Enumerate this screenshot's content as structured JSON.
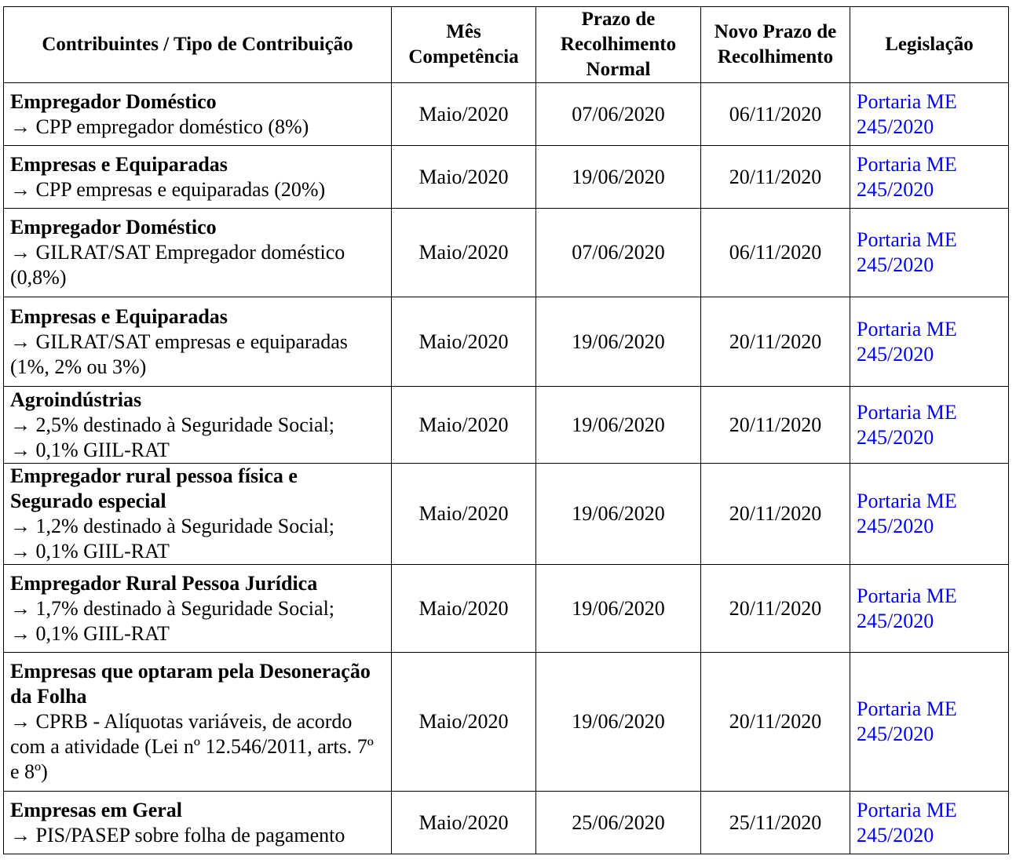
{
  "headers": [
    "Contribuintes / Tipo de Contribuição",
    "Mês Competência",
    "Prazo de Recolhimento Normal",
    "Novo Prazo de Recolhimento",
    "Legislação"
  ],
  "link_color": "#0000ff",
  "rows": [
    {
      "title": "Empregador Doméstico",
      "details": [
        "→ CPP empregador doméstico (8%)"
      ],
      "month": "Maio/2020",
      "normal": "07/06/2020",
      "new": "06/11/2020",
      "law": "Portaria ME 245/2020"
    },
    {
      "title": "Empresas e Equiparadas",
      "details": [
        "→ CPP empresas e equiparadas (20%)"
      ],
      "month": "Maio/2020",
      "normal": "19/06/2020",
      "new": "20/11/2020",
      "law": "Portaria ME 245/2020"
    },
    {
      "title": "Empregador Doméstico",
      "details": [
        "→ GILRAT/SAT Empregador doméstico (0,8%)"
      ],
      "month": "Maio/2020",
      "normal": "07/06/2020",
      "new": "06/11/2020",
      "law": "Portaria ME 245/2020"
    },
    {
      "title": "Empresas e Equiparadas",
      "details": [
        "→ GILRAT/SAT empresas e equiparadas (1%, 2% ou 3%)"
      ],
      "month": "Maio/2020",
      "normal": "19/06/2020",
      "new": "20/11/2020",
      "law": "Portaria ME 245/2020"
    },
    {
      "title": "Agroindústrias",
      "details": [
        "→ 2,5% destinado à Seguridade Social;",
        "→ 0,1% GIIL-RAT"
      ],
      "month": "Maio/2020",
      "normal": "19/06/2020",
      "new": "20/11/2020",
      "law": "Portaria ME 245/2020"
    },
    {
      "title": "Empregador rural pessoa física e Segurado especial",
      "details": [
        "→ 1,2% destinado à Seguridade Social;",
        "→ 0,1% GIIL-RAT"
      ],
      "month": "Maio/2020",
      "normal": "19/06/2020",
      "new": "20/11/2020",
      "law": "Portaria ME 245/2020"
    },
    {
      "title": "Empregador Rural Pessoa Jurídica",
      "details": [
        "→ 1,7% destinado à Seguridade Social;",
        "→ 0,1% GIIL-RAT"
      ],
      "month": "Maio/2020",
      "normal": "19/06/2020",
      "new": "20/11/2020",
      "law": "Portaria ME 245/2020"
    },
    {
      "title": "Empresas que optaram pela Desoneração da Folha",
      "details": [
        "→ CPRB - Alíquotas variáveis, de acordo com a atividade (Lei nº 12.546/2011, arts. 7º e 8º)"
      ],
      "month": "Maio/2020",
      "normal": "19/06/2020",
      "new": "20/11/2020",
      "law": "Portaria ME 245/2020"
    },
    {
      "title": "Empresas em Geral",
      "details": [
        "→ PIS/PASEP sobre folha de pagamento"
      ],
      "month": "Maio/2020",
      "normal": "25/06/2020",
      "new": "25/11/2020",
      "law": "Portaria ME 245/2020"
    }
  ]
}
